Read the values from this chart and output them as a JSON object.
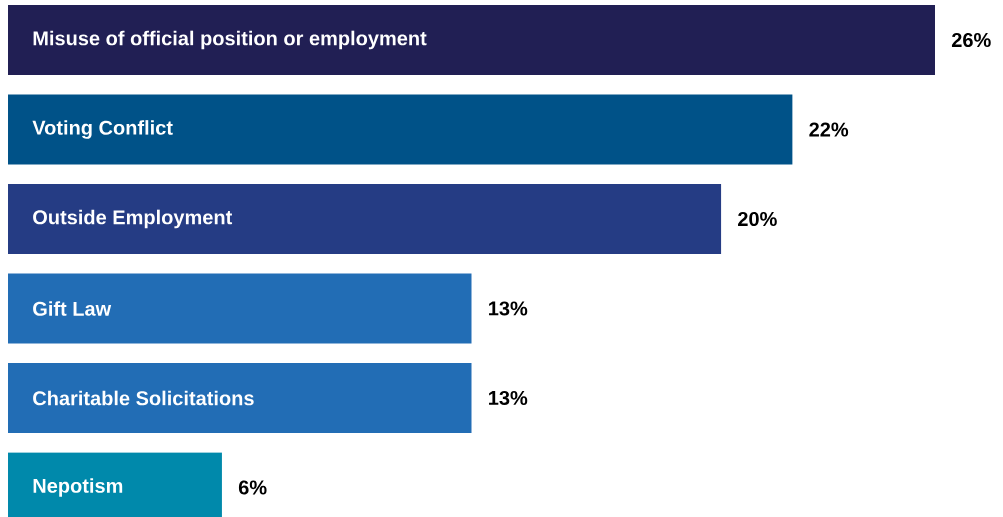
{
  "chart_data": {
    "type": "bar",
    "orientation": "horizontal",
    "categories": [
      "Misuse of official position or employment",
      "Voting Conflict",
      "Outside Employment",
      "Gift Law",
      "Charitable Solicitations",
      "Nepotism"
    ],
    "values": [
      26,
      22,
      20,
      13,
      13,
      6
    ],
    "colors": [
      "#211f54",
      "#005288",
      "#253c84",
      "#226db5",
      "#226db5",
      "#0089ab"
    ],
    "value_labels": [
      "26%",
      "22%",
      "20%",
      "13%",
      "13%",
      "6%"
    ]
  }
}
